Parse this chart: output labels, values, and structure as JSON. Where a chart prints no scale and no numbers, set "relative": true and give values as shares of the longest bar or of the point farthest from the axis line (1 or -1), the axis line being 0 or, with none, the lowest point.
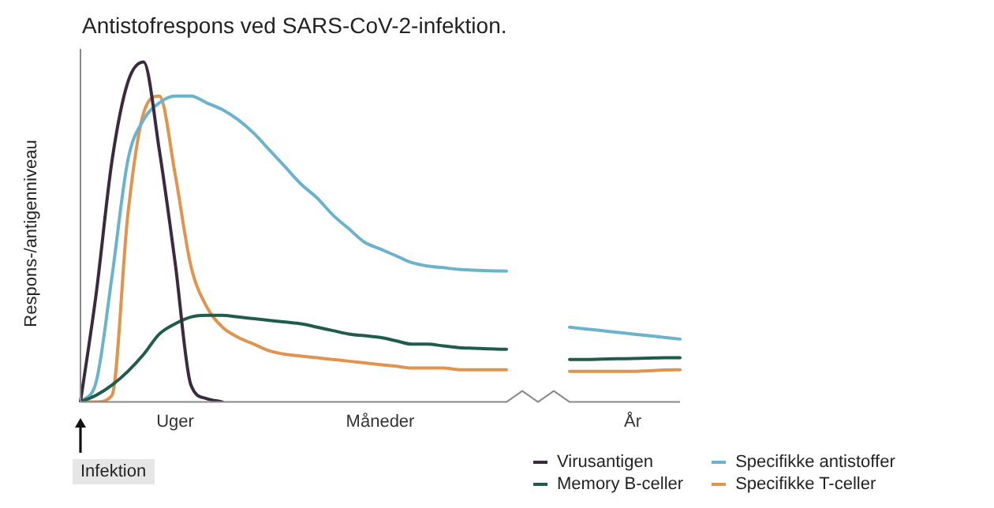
{
  "chart_data": {
    "type": "line",
    "title": "Antistofrespons ved SARS-CoV-2-infektion.",
    "ylabel": "Respons-/antigenniveau",
    "relative": true,
    "legend": "bottom right",
    "marker": "none",
    "line_style": "solid",
    "grid": false,
    "annotations": [
      "Infektion"
    ],
    "categories": [
      null,
      null,
      null,
      null,
      null,
      null,
      "Uger",
      null,
      null,
      null,
      null,
      null,
      null,
      null,
      null,
      null,
      null,
      null,
      null,
      "Måneder",
      null,
      null,
      null,
      null,
      null,
      null,
      null,
      null,
      null,
      null,
      null,
      null,
      null,
      null,
      null,
      "År",
      null,
      null,
      null
    ],
    "series": [
      {
        "name": "Virusantigen",
        "color": "#3b2a3f",
        "values": [
          0,
          0.32,
          0.71,
          0.94,
          1,
          0.74,
          0.41,
          0.05,
          0.01,
          0,
          null,
          null,
          null,
          null,
          null,
          null,
          null,
          null,
          null,
          null,
          null,
          null,
          null,
          null,
          null,
          null,
          null,
          null,
          null,
          null,
          null,
          null,
          null,
          null,
          null,
          null,
          null,
          null,
          null
        ]
      },
      {
        "name": "Memory B-celler",
        "color": "#1f5c4c",
        "values": [
          0,
          0.02,
          0.05,
          0.09,
          0.14,
          0.2,
          0.23,
          0.25,
          0.255,
          0.255,
          0.25,
          0.245,
          0.24,
          0.235,
          0.23,
          0.22,
          0.21,
          0.2,
          0.195,
          0.19,
          0.18,
          0.17,
          0.17,
          0.165,
          0.16,
          0.158,
          0.156,
          0.155,
          null,
          null,
          null,
          0.125,
          0.125,
          0.126,
          0.127,
          0.128,
          0.129,
          0.13,
          0.13
        ]
      },
      {
        "name": "Specifikke antistoffer",
        "color": "#6bb3cc",
        "values": [
          0,
          0.06,
          0.37,
          0.71,
          0.83,
          0.88,
          0.9,
          0.9,
          0.88,
          0.86,
          0.83,
          0.79,
          0.74,
          0.69,
          0.64,
          0.6,
          0.55,
          0.51,
          0.47,
          0.45,
          0.43,
          0.41,
          0.4,
          0.395,
          0.39,
          0.388,
          0.386,
          0.385,
          null,
          null,
          null,
          0.22,
          0.215,
          0.21,
          0.205,
          0.2,
          0.195,
          0.19,
          0.185
        ]
      },
      {
        "name": "Specifikke T-celler",
        "color": "#e0944e",
        "values": [
          0,
          0,
          0.02,
          0.55,
          0.85,
          0.9,
          0.67,
          0.4,
          0.28,
          0.22,
          0.19,
          0.17,
          0.15,
          0.14,
          0.135,
          0.13,
          0.125,
          0.12,
          0.115,
          0.11,
          0.105,
          0.1,
          0.1,
          0.1,
          0.095,
          0.095,
          0.095,
          0.095,
          null,
          null,
          null,
          0.09,
          0.09,
          0.09,
          0.09,
          0.09,
          0.092,
          0.094,
          0.095
        ]
      }
    ]
  }
}
